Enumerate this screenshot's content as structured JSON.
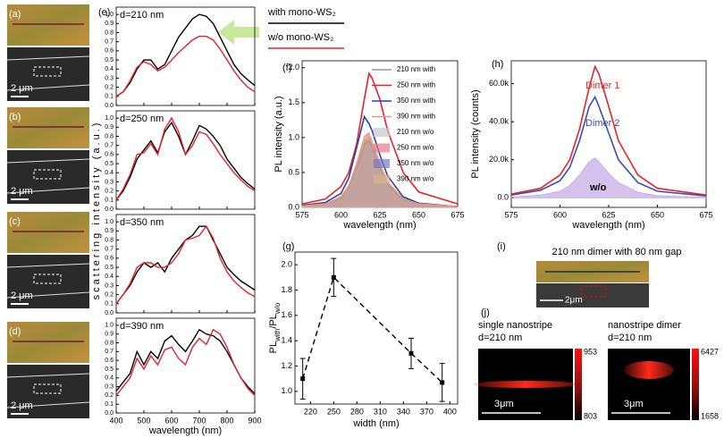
{
  "chart_data": [
    {
      "type": "line",
      "panel": "(e)",
      "x_label": "wavelength (nm)",
      "y_label": "scattering intensity (a.u.)",
      "x": [
        400,
        425,
        450,
        475,
        500,
        525,
        550,
        575,
        600,
        625,
        650,
        675,
        700,
        725,
        750,
        775,
        800,
        825,
        850,
        875,
        900
      ],
      "xlim": [
        400,
        900
      ],
      "xticks": [
        400,
        500,
        600,
        700,
        800,
        900
      ],
      "ylim": [
        0,
        1.08
      ],
      "yticks": [
        {
          "value": 0,
          "label": "0.0"
        },
        {
          "value": 0.1,
          "label": "0.1"
        },
        {
          "value": 0.2,
          "label": "0.2"
        },
        {
          "value": 0.3,
          "label": "0.3"
        },
        {
          "value": 0.4,
          "label": "0.4"
        },
        {
          "value": 0.5,
          "label": "0.5"
        },
        {
          "value": 0.6,
          "label": "0.6"
        },
        {
          "value": 0.7,
          "label": "0.7"
        },
        {
          "value": 0.8,
          "label": "0.8"
        },
        {
          "value": 0.9,
          "label": "0.9"
        },
        {
          "value": 1,
          "label": "1.0"
        }
      ],
      "series": [
        {
          "name": "with mono-WS₂",
          "color": "#000000"
        },
        {
          "name": "w/o mono-WS₂",
          "color": "#e8212b"
        }
      ],
      "subplots": [
        {
          "title": "d=210 nm",
          "values": [
            [
              0.1,
              0.15,
              0.25,
              0.4,
              0.5,
              0.5,
              0.4,
              0.45,
              0.6,
              0.75,
              0.85,
              0.95,
              1.0,
              0.98,
              0.9,
              0.75,
              0.6,
              0.45,
              0.35,
              0.28,
              0.22
            ],
            [
              0.1,
              0.15,
              0.27,
              0.42,
              0.48,
              0.45,
              0.38,
              0.42,
              0.5,
              0.58,
              0.65,
              0.72,
              0.76,
              0.76,
              0.72,
              0.62,
              0.5,
              0.38,
              0.28,
              0.2,
              0.15
            ]
          ]
        },
        {
          "title": "d=250 nm",
          "values": [
            [
              0.1,
              0.2,
              0.35,
              0.55,
              0.65,
              0.75,
              0.62,
              0.85,
              0.95,
              0.8,
              0.6,
              0.75,
              0.92,
              0.88,
              0.8,
              0.7,
              0.55,
              0.45,
              0.35,
              0.28,
              0.22
            ],
            [
              0.1,
              0.22,
              0.38,
              0.6,
              0.62,
              0.72,
              0.6,
              0.88,
              1.0,
              0.85,
              0.6,
              0.7,
              0.85,
              0.82,
              0.72,
              0.6,
              0.5,
              0.4,
              0.32,
              0.25,
              0.2
            ]
          ]
        },
        {
          "title": "d=350 nm",
          "values": [
            [
              0.1,
              0.2,
              0.3,
              0.45,
              0.55,
              0.5,
              0.55,
              0.45,
              0.6,
              0.7,
              0.8,
              0.85,
              0.95,
              0.95,
              0.8,
              0.65,
              0.5,
              0.42,
              0.35,
              0.3,
              0.25
            ],
            [
              0.1,
              0.2,
              0.32,
              0.5,
              0.55,
              0.55,
              0.5,
              0.5,
              0.55,
              0.65,
              0.8,
              0.82,
              0.85,
              0.95,
              0.82,
              0.6,
              0.45,
              0.35,
              0.28,
              0.22,
              0.18
            ]
          ]
        },
        {
          "title": "d=390 nm",
          "values": [
            [
              0.25,
              0.35,
              0.45,
              0.7,
              0.55,
              0.7,
              0.62,
              0.82,
              0.88,
              0.78,
              0.7,
              0.82,
              0.95,
              0.9,
              0.88,
              0.82,
              0.7,
              0.55,
              0.4,
              0.3,
              0.22
            ],
            [
              0.2,
              0.3,
              0.4,
              0.62,
              0.5,
              0.65,
              0.55,
              0.72,
              0.75,
              0.62,
              0.55,
              0.75,
              0.85,
              0.78,
              0.95,
              0.9,
              0.75,
              0.55,
              0.4,
              0.28,
              0.2
            ]
          ]
        }
      ]
    },
    {
      "type": "line",
      "panel": "(f)",
      "x_label": "wavelength (nm)",
      "y_label": "PL intensity (a.u.)",
      "x": [
        575,
        590,
        600,
        605,
        610,
        615,
        618,
        620,
        625,
        630,
        640,
        650,
        675
      ],
      "xlim": [
        575,
        675
      ],
      "xticks": [
        575,
        600,
        625,
        650,
        675
      ],
      "ylim": [
        0,
        2.1
      ],
      "yticks": [
        {
          "value": 0,
          "label": "0.0"
        },
        {
          "value": 0.5,
          "label": "0.5"
        },
        {
          "value": 1,
          "label": "1.0"
        },
        {
          "value": 1.5,
          "label": "1.5"
        },
        {
          "value": 2,
          "label": "2.0"
        }
      ],
      "series": [
        {
          "name": "210 nm w/o",
          "kind": "area",
          "color": "#c8c8c8",
          "values": [
            0.02,
            0.04,
            0.13,
            0.27,
            0.54,
            0.86,
            0.9,
            0.81,
            0.54,
            0.32,
            0.11,
            0.04,
            0.01
          ]
        },
        {
          "name": "250 nm w/o",
          "kind": "area",
          "color": "#e87a8a",
          "values": [
            0.02,
            0.05,
            0.16,
            0.32,
            0.64,
            1.02,
            1.07,
            0.96,
            0.64,
            0.37,
            0.13,
            0.05,
            0.01
          ]
        },
        {
          "name": "350 nm w/o",
          "kind": "area",
          "color": "#7b78c8",
          "values": [
            0.02,
            0.05,
            0.15,
            0.3,
            0.6,
            0.95,
            1.0,
            0.9,
            0.6,
            0.35,
            0.12,
            0.05,
            0.01
          ]
        },
        {
          "name": "390 nm w/o",
          "kind": "area",
          "color": "#d9b48a",
          "values": [
            0.02,
            0.05,
            0.16,
            0.32,
            0.63,
            1.0,
            1.05,
            0.95,
            0.63,
            0.37,
            0.13,
            0.05,
            0.01
          ]
        },
        {
          "name": "210 nm with",
          "kind": "line",
          "color": "#999999",
          "values": [
            0.02,
            0.05,
            0.14,
            0.29,
            0.57,
            0.9,
            0.95,
            0.86,
            0.57,
            0.33,
            0.11,
            0.05,
            0.01
          ]
        },
        {
          "name": "250 nm with",
          "kind": "line",
          "color": "#e8212b",
          "values": [
            0.05,
            0.12,
            0.3,
            0.5,
            0.9,
            1.55,
            1.92,
            1.85,
            1.55,
            1.1,
            0.5,
            0.22,
            0.05
          ]
        },
        {
          "name": "350 nm with",
          "kind": "line",
          "color": "#2c3fa8",
          "values": [
            0.03,
            0.07,
            0.2,
            0.42,
            0.85,
            1.3,
            1.2,
            1.1,
            0.75,
            0.45,
            0.15,
            0.06,
            0.01
          ]
        },
        {
          "name": "390 nm with",
          "kind": "line",
          "color": "#e89a7a",
          "values": [
            0.02,
            0.05,
            0.15,
            0.3,
            0.6,
            0.95,
            1.0,
            0.9,
            0.6,
            0.35,
            0.12,
            0.05,
            0.01
          ]
        }
      ]
    },
    {
      "type": "errorbar",
      "panel": "(g)",
      "x_label": "width (nm)",
      "y_label": [
        "PL",
        "with",
        "/PL",
        "w/o"
      ],
      "x": [
        210,
        250,
        350,
        390
      ],
      "values": [
        1.1,
        1.9,
        1.3,
        1.07
      ],
      "errors": [
        0.16,
        0.15,
        0.12,
        0.15
      ],
      "xlim": [
        200,
        410
      ],
      "xticks": [
        220,
        250,
        280,
        310,
        340,
        370,
        400
      ],
      "ylim": [
        0.9,
        2.1
      ],
      "yticks": [
        {
          "value": 1,
          "label": "1.0"
        },
        {
          "value": 1.2,
          "label": "1.2"
        },
        {
          "value": 1.4,
          "label": "1.4"
        },
        {
          "value": 1.6,
          "label": "1.6"
        },
        {
          "value": 1.8,
          "label": "1.8"
        },
        {
          "value": 2,
          "label": "2.0"
        }
      ],
      "color": "#000000"
    },
    {
      "type": "line",
      "panel": "(h)",
      "x_label": "wavelength (nm)",
      "y_label": "PL intensity (counts)",
      "x": [
        575,
        590,
        600,
        605,
        610,
        615,
        618,
        620,
        625,
        630,
        640,
        650,
        675
      ],
      "xlim": [
        575,
        675
      ],
      "xticks": [
        575,
        600,
        625,
        650,
        675
      ],
      "ylim": [
        -5000,
        72000
      ],
      "yticks": [
        {
          "value": 0,
          "label": "0.0"
        },
        {
          "value": 20000,
          "label": "20.0k"
        },
        {
          "value": 40000,
          "label": "40.0k"
        },
        {
          "value": 60000,
          "label": "60.0k"
        }
      ],
      "series": [
        {
          "name": "w/o",
          "kind": "area",
          "color": "#b79ae0",
          "values": [
            500,
            1500,
            3500,
            6500,
            12000,
            19000,
            21000,
            19000,
            13000,
            8000,
            3000,
            1200,
            300
          ]
        },
        {
          "name": "Dimer 2",
          "kind": "line",
          "color": "#3b4db0",
          "values": [
            1500,
            4000,
            9000,
            16000,
            30000,
            48000,
            53000,
            48000,
            34000,
            20000,
            8000,
            3500,
            1000
          ]
        },
        {
          "name": "Dimer 1",
          "kind": "line",
          "color": "#e8212b",
          "values": [
            2000,
            5000,
            12000,
            20000,
            36000,
            58000,
            69000,
            65000,
            48000,
            30000,
            12000,
            5000,
            1500
          ]
        }
      ]
    }
  ],
  "images": [
    {
      "panel": "(a)",
      "scale": "2 μm"
    },
    {
      "panel": "(b)",
      "scale": "2 μm"
    },
    {
      "panel": "(c)",
      "scale": "2 μm"
    },
    {
      "panel": "(d)",
      "scale": "2 μm"
    }
  ],
  "panel_i": {
    "panel": "(i)",
    "title": "210 nm dimer with 80 nm gap",
    "scale": "2μm"
  },
  "panel_j": {
    "panel": "(j)",
    "maps": [
      {
        "title": "single nanostripe",
        "subtitle": "d=210 nm",
        "scale": "3μm",
        "max": 953,
        "min": 803
      },
      {
        "title": "nanostripe dimer",
        "subtitle": "d=210 nm",
        "scale": "3μm",
        "max": 6427,
        "min": 1658
      }
    ]
  }
}
